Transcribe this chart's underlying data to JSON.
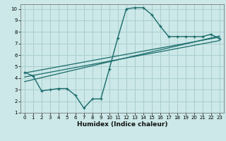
{
  "xlabel": "Humidex (Indice chaleur)",
  "bg_color": "#cce8e8",
  "grid_color": "#aacece",
  "line_color": "#1a6b6b",
  "xlim": [
    -0.5,
    23.5
  ],
  "ylim": [
    1,
    10.4
  ],
  "xticks": [
    0,
    1,
    2,
    3,
    4,
    5,
    6,
    7,
    8,
    9,
    10,
    11,
    12,
    13,
    14,
    15,
    16,
    17,
    18,
    19,
    20,
    21,
    22,
    23
  ],
  "yticks": [
    1,
    2,
    3,
    4,
    5,
    6,
    7,
    8,
    9,
    10
  ],
  "curve1_x": [
    0,
    1,
    2,
    3,
    4,
    5,
    6,
    7,
    8,
    9,
    10,
    11,
    12,
    13,
    14,
    15,
    16,
    17,
    18,
    19,
    20,
    21,
    22,
    23
  ],
  "curve1_y": [
    4.5,
    4.2,
    2.9,
    3.0,
    3.1,
    3.1,
    2.5,
    1.4,
    2.2,
    2.2,
    4.8,
    7.5,
    10.0,
    10.1,
    10.1,
    9.5,
    8.5,
    7.6,
    7.6,
    7.6,
    7.6,
    7.6,
    7.8,
    7.4
  ],
  "line1_x": [
    0,
    23
  ],
  "line1_y": [
    4.45,
    7.55
  ],
  "line2_x": [
    0,
    23
  ],
  "line2_y": [
    4.1,
    7.25
  ],
  "line3_x": [
    0,
    23
  ],
  "line3_y": [
    3.7,
    7.65
  ]
}
